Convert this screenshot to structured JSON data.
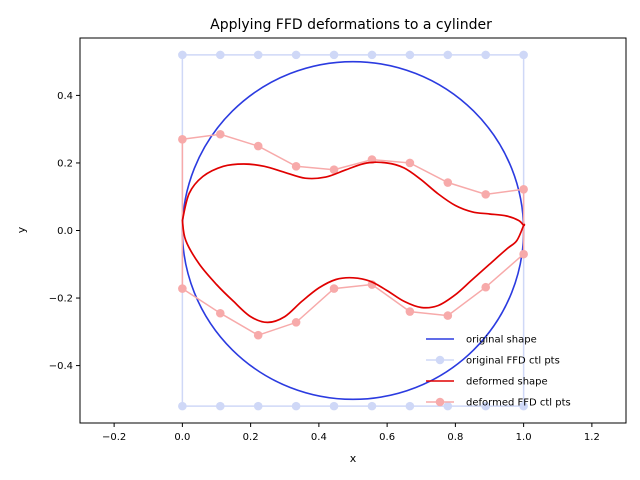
{
  "chart_data": {
    "type": "line",
    "title": "Applying FFD deformations to a cylinder",
    "xlabel": "x",
    "ylabel": "y",
    "xlim": [
      -0.3,
      1.3
    ],
    "ylim": [
      -0.57,
      0.57
    ],
    "xticks": [
      -0.2,
      0.0,
      0.2,
      0.4,
      0.6,
      0.8,
      1.0,
      1.2
    ],
    "xtick_labels": [
      "−0.2",
      "0.0",
      "0.2",
      "0.4",
      "0.6",
      "0.8",
      "1.0",
      "1.2"
    ],
    "yticks": [
      -0.4,
      -0.2,
      0.0,
      0.2,
      0.4
    ],
    "ytick_labels": [
      "−0.4",
      "−0.2",
      "0.0",
      "0.2",
      "0.4"
    ],
    "grid": false,
    "legend_position": "lower-right",
    "series": [
      {
        "name": "original shape",
        "kind": "circle",
        "color": "#2b3be0",
        "center": [
          0.5,
          0.0
        ],
        "radius": 0.5
      },
      {
        "name": "original FFD ctl pts",
        "kind": "control-lattice",
        "color": "#cfd8f7",
        "marker": true,
        "x": [
          0.0,
          0.1111,
          0.2222,
          0.3333,
          0.4444,
          0.5556,
          0.6667,
          0.7778,
          0.8889,
          1.0
        ],
        "upper_y": [
          0.52,
          0.52,
          0.52,
          0.52,
          0.52,
          0.52,
          0.52,
          0.52,
          0.52,
          0.52
        ],
        "lower_y": [
          -0.52,
          -0.52,
          -0.52,
          -0.52,
          -0.52,
          -0.52,
          -0.52,
          -0.52,
          -0.52,
          -0.52
        ]
      },
      {
        "name": "deformed shape",
        "kind": "closed-curve",
        "color": "#e00000",
        "upper": [
          [
            0.0,
            0.03
          ],
          [
            0.02,
            0.11
          ],
          [
            0.06,
            0.16
          ],
          [
            0.12,
            0.19
          ],
          [
            0.18,
            0.197
          ],
          [
            0.24,
            0.19
          ],
          [
            0.3,
            0.172
          ],
          [
            0.36,
            0.155
          ],
          [
            0.42,
            0.158
          ],
          [
            0.48,
            0.18
          ],
          [
            0.54,
            0.2
          ],
          [
            0.6,
            0.2
          ],
          [
            0.65,
            0.185
          ],
          [
            0.7,
            0.15
          ],
          [
            0.75,
            0.108
          ],
          [
            0.8,
            0.074
          ],
          [
            0.85,
            0.055
          ],
          [
            0.9,
            0.049
          ],
          [
            0.95,
            0.043
          ],
          [
            0.985,
            0.03
          ],
          [
            1.0,
            0.015
          ]
        ],
        "lower": [
          [
            0.0,
            0.03
          ],
          [
            0.01,
            -0.03
          ],
          [
            0.05,
            -0.1
          ],
          [
            0.1,
            -0.16
          ],
          [
            0.15,
            -0.21
          ],
          [
            0.2,
            -0.255
          ],
          [
            0.25,
            -0.272
          ],
          [
            0.3,
            -0.255
          ],
          [
            0.35,
            -0.21
          ],
          [
            0.4,
            -0.17
          ],
          [
            0.45,
            -0.145
          ],
          [
            0.5,
            -0.14
          ],
          [
            0.55,
            -0.15
          ],
          [
            0.6,
            -0.178
          ],
          [
            0.65,
            -0.21
          ],
          [
            0.7,
            -0.228
          ],
          [
            0.75,
            -0.222
          ],
          [
            0.8,
            -0.19
          ],
          [
            0.85,
            -0.145
          ],
          [
            0.9,
            -0.1
          ],
          [
            0.95,
            -0.055
          ],
          [
            0.98,
            -0.03
          ],
          [
            1.0,
            0.015
          ]
        ]
      },
      {
        "name": "deformed FFD ctl pts",
        "kind": "control-lattice",
        "color": "#f7aaaa",
        "marker": true,
        "x": [
          0.0,
          0.1111,
          0.2222,
          0.3333,
          0.4444,
          0.5556,
          0.6667,
          0.7778,
          0.8889,
          1.0
        ],
        "upper_y": [
          0.27,
          0.285,
          0.25,
          0.19,
          0.18,
          0.21,
          0.2,
          0.142,
          0.107,
          0.122
        ],
        "lower_y": [
          -0.172,
          -0.245,
          -0.31,
          -0.272,
          -0.172,
          -0.16,
          -0.24,
          -0.252,
          -0.168,
          -0.07
        ]
      }
    ]
  }
}
